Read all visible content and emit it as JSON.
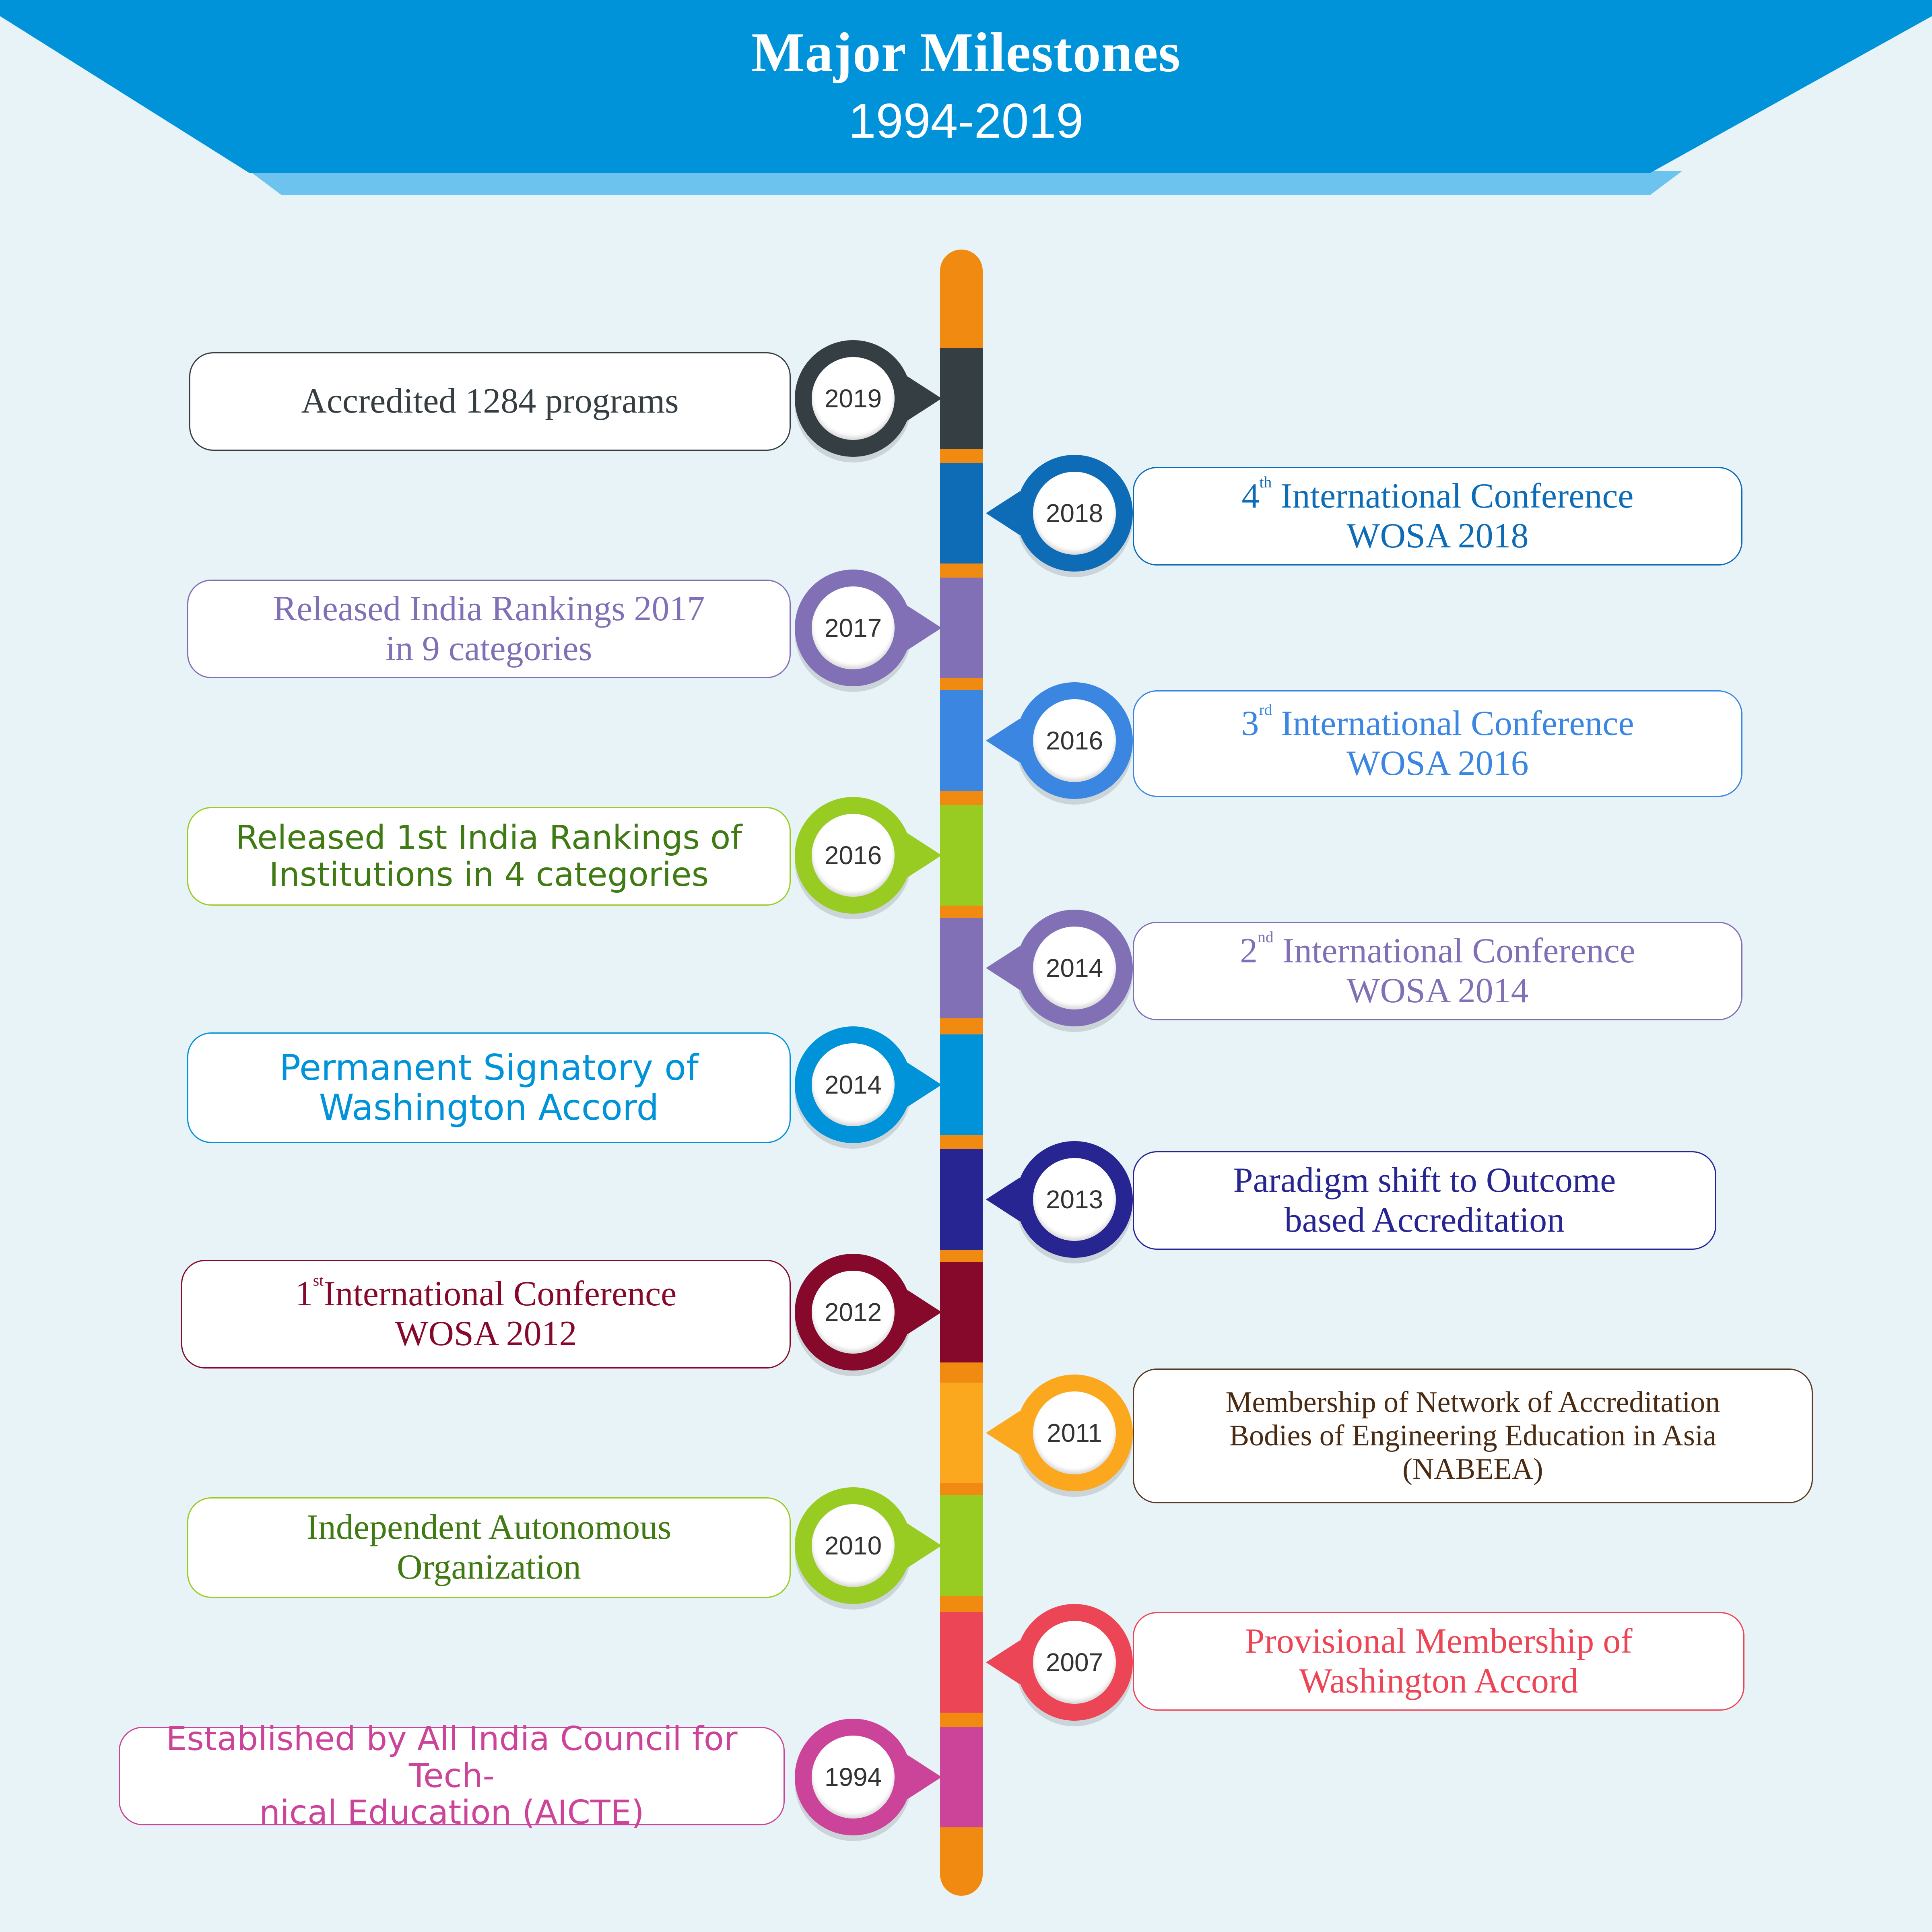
{
  "header": {
    "title": "Major Milestones",
    "subtitle": "1994-2019",
    "color": "#0093d9",
    "light_color": "#6cc4ee"
  },
  "timeline": {
    "spine_color": "#f08a10",
    "milestones": [
      {
        "year": "2019",
        "text": "Accredited 1284 programs",
        "side": "left",
        "color": "#353e42"
      },
      {
        "year": "2018",
        "ordinal": "4",
        "ordinal_suffix": "th",
        "text": " International Conference\nWOSA 2018",
        "side": "right",
        "color": "#0e6cb7"
      },
      {
        "year": "2017",
        "text": "Released India Rankings 2017\nin 9 categories",
        "side": "left",
        "color": "#8170b6"
      },
      {
        "year": "2016",
        "ordinal": "3",
        "ordinal_suffix": "rd",
        "text": " International Conference\nWOSA 2016",
        "side": "right",
        "color": "#3b86e0"
      },
      {
        "year": "2016",
        "text": "Released 1st India Rankings of\nInstitutions in 4 categories",
        "side": "left",
        "color": "#99cc22",
        "text_color": "#3f7a12"
      },
      {
        "year": "2014",
        "ordinal": "2",
        "ordinal_suffix": "nd",
        "text": " International Conference\nWOSA 2014",
        "side": "right",
        "color": "#8170b6"
      },
      {
        "year": "2014",
        "text": "Permanent Signatory of\nWashington Accord",
        "side": "left",
        "color": "#0093d9"
      },
      {
        "year": "2013",
        "text": "Paradigm shift to Outcome\nbased Accreditation",
        "side": "right",
        "color": "#262591"
      },
      {
        "year": "2012",
        "ordinal": "1",
        "ordinal_suffix": "st",
        "text": "International Conference\nWOSA 2012",
        "side": "left",
        "color": "#86092b"
      },
      {
        "year": "2011",
        "text": "Membership of Network of Accreditation\nBodies of Engineering Education in Asia\n(NABEEA)",
        "side": "right",
        "color": "#fba81e",
        "text_color": "#4a2a10",
        "border_color": "#5a3a20"
      },
      {
        "year": "2010",
        "text": "Independent Autonomous\nOrganization",
        "side": "left",
        "color": "#99cc22",
        "text_color": "#3f7a12"
      },
      {
        "year": "2007",
        "text": "Provisional Membership of\nWashington Accord",
        "side": "right",
        "color": "#ec4556"
      },
      {
        "year": "1994",
        "text": "Established by All India Council for Tech-\nnical Education (AICTE)",
        "side": "left",
        "color": "#cc4499"
      }
    ]
  }
}
